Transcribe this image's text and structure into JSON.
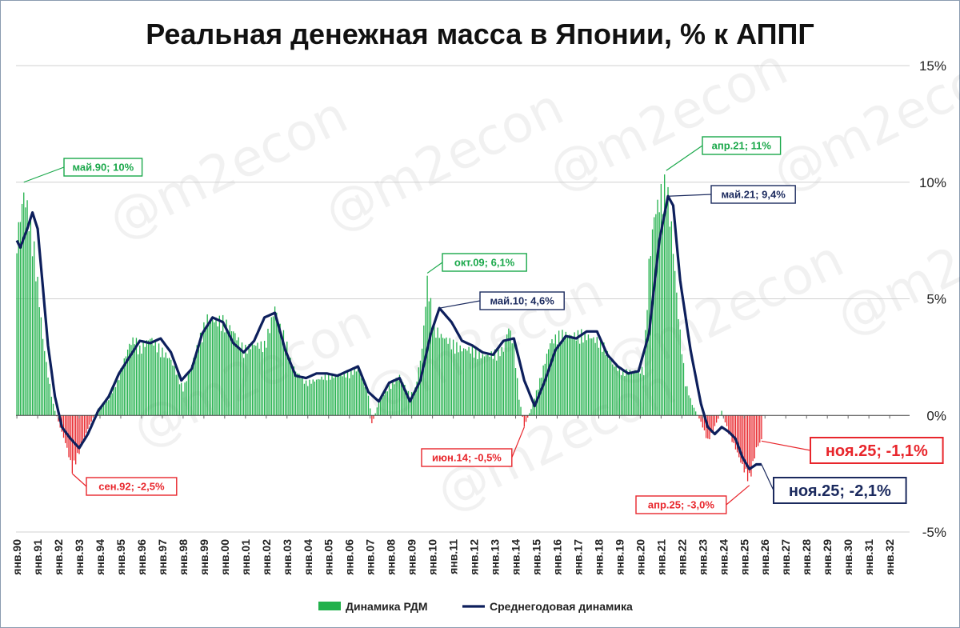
{
  "chart_data": {
    "type": "bar",
    "title": "Реальная денежная масса в Японии, % к АППГ",
    "ylim": [
      -5,
      15
    ],
    "yticks": [
      -5,
      0,
      5,
      10,
      15
    ],
    "ytick_labels": [
      "-5%",
      "0%",
      "5%",
      "10%",
      "15%"
    ],
    "grid": true,
    "legend_position": "bottom",
    "x_start": "1990-01",
    "x_end": "2032-12",
    "xtick_labels": [
      "янв.90",
      "янв.91",
      "янв.92",
      "янв.93",
      "янв.94",
      "янв.95",
      "янв.96",
      "янв.97",
      "янв.98",
      "янв.99",
      "янв.00",
      "янв.01",
      "янв.02",
      "янв.03",
      "янв.04",
      "янв.05",
      "янв.06",
      "янв.07",
      "янв.08",
      "янв.09",
      "янв.10",
      "янв.11",
      "янв.12",
      "янв.13",
      "янв.14",
      "янв.15",
      "янв.16",
      "янв.17",
      "янв.18",
      "янв.19",
      "янв.20",
      "янв.21",
      "янв.22",
      "янв.23",
      "янв.24",
      "янв.25",
      "янв.26",
      "янв.27",
      "янв.28",
      "янв.29",
      "янв.30",
      "янв.31",
      "янв.32"
    ],
    "watermark": "@m2econ",
    "colors": {
      "positive_bar": "#22b14c",
      "negative_bar": "#e8262c",
      "line": "#0d1f5c",
      "green_label": "#1aa84a",
      "red_label": "#e8262c",
      "blue_label": "#1b2a5e"
    },
    "series": [
      {
        "name": "Динамика РДМ",
        "kind": "bar",
        "points": [
          [
            "1990-01",
            7.9
          ],
          [
            "1990-03",
            9.0
          ],
          [
            "1990-05",
            10.0
          ],
          [
            "1990-07",
            9.4
          ],
          [
            "1990-10",
            8.2
          ],
          [
            "1991-01",
            6.0
          ],
          [
            "1991-04",
            3.5
          ],
          [
            "1991-07",
            1.8
          ],
          [
            "1991-10",
            0.5
          ],
          [
            "1992-01",
            -0.3
          ],
          [
            "1992-04",
            -1.0
          ],
          [
            "1992-06",
            -1.5
          ],
          [
            "1992-09",
            -2.5
          ],
          [
            "1992-12",
            -1.9
          ],
          [
            "1993-03",
            -1.2
          ],
          [
            "1993-06",
            -0.6
          ],
          [
            "1993-09",
            -0.1
          ],
          [
            "1993-12",
            0.3
          ],
          [
            "1994-06",
            0.7
          ],
          [
            "1994-12",
            1.8
          ],
          [
            "1995-06",
            3.2
          ],
          [
            "1995-09",
            3.5
          ],
          [
            "1995-12",
            3.0
          ],
          [
            "1996-06",
            3.5
          ],
          [
            "1996-12",
            3.0
          ],
          [
            "1997-06",
            2.5
          ],
          [
            "1997-10",
            1.8
          ],
          [
            "1998-01",
            1.2
          ],
          [
            "1998-06",
            2.3
          ],
          [
            "1998-12",
            3.8
          ],
          [
            "1999-03",
            4.4
          ],
          [
            "1999-07",
            4.3
          ],
          [
            "1999-12",
            4.3
          ],
          [
            "2000-06",
            3.8
          ],
          [
            "2000-12",
            3.0
          ],
          [
            "2001-06",
            3.2
          ],
          [
            "2001-12",
            3.2
          ],
          [
            "2002-03",
            4.0
          ],
          [
            "2002-06",
            4.9
          ],
          [
            "2002-09",
            4.0
          ],
          [
            "2002-12",
            3.5
          ],
          [
            "2003-03",
            2.5
          ],
          [
            "2003-06",
            2.0
          ],
          [
            "2003-12",
            1.5
          ],
          [
            "2004-06",
            1.6
          ],
          [
            "2004-12",
            1.8
          ],
          [
            "2005-06",
            1.8
          ],
          [
            "2005-12",
            1.9
          ],
          [
            "2006-06",
            2.1
          ],
          [
            "2006-12",
            1.0
          ],
          [
            "2007-02",
            -0.4
          ],
          [
            "2007-06",
            0.6
          ],
          [
            "2007-12",
            1.3
          ],
          [
            "2008-06",
            1.8
          ],
          [
            "2008-12",
            0.9
          ],
          [
            "2009-03",
            1.2
          ],
          [
            "2009-07",
            3.0
          ],
          [
            "2009-10",
            6.1
          ],
          [
            "2010-02",
            4.0
          ],
          [
            "2010-06",
            3.6
          ],
          [
            "2010-12",
            3.3
          ],
          [
            "2011-06",
            3.0
          ],
          [
            "2011-12",
            3.0
          ],
          [
            "2012-06",
            2.7
          ],
          [
            "2012-12",
            2.8
          ],
          [
            "2013-06",
            3.0
          ],
          [
            "2013-09",
            4.0
          ],
          [
            "2013-12",
            3.2
          ],
          [
            "2014-03",
            0.8
          ],
          [
            "2014-06",
            -0.5
          ],
          [
            "2014-10",
            0.3
          ],
          [
            "2015-03",
            1.6
          ],
          [
            "2015-09",
            3.3
          ],
          [
            "2016-03",
            3.7
          ],
          [
            "2016-09",
            3.6
          ],
          [
            "2017-03",
            3.7
          ],
          [
            "2017-09",
            3.5
          ],
          [
            "2018-03",
            3.3
          ],
          [
            "2018-09",
            2.3
          ],
          [
            "2019-03",
            2.0
          ],
          [
            "2019-09",
            2.0
          ],
          [
            "2020-03",
            2.1
          ],
          [
            "2020-06",
            6.8
          ],
          [
            "2020-09",
            9.0
          ],
          [
            "2021-01",
            10.0
          ],
          [
            "2021-04",
            10.5
          ],
          [
            "2021-07",
            8.5
          ],
          [
            "2021-11",
            4.5
          ],
          [
            "2022-03",
            1.5
          ],
          [
            "2022-07",
            0.5
          ],
          [
            "2022-12",
            -0.3
          ],
          [
            "2023-04",
            -1.2
          ],
          [
            "2023-08",
            -0.5
          ],
          [
            "2023-12",
            0.2
          ],
          [
            "2024-04",
            -0.8
          ],
          [
            "2024-08",
            -1.5
          ],
          [
            "2024-12",
            -2.3
          ],
          [
            "2025-04",
            -3.0
          ],
          [
            "2025-08",
            -1.5
          ],
          [
            "2025-11",
            -1.1
          ]
        ]
      },
      {
        "name": "Среднегодовая динамика",
        "kind": "line",
        "points": [
          [
            "1990-01",
            7.5
          ],
          [
            "1990-03",
            7.2
          ],
          [
            "1990-07",
            8.0
          ],
          [
            "1990-10",
            8.7
          ],
          [
            "1991-01",
            8.0
          ],
          [
            "1991-04",
            5.5
          ],
          [
            "1991-07",
            3.0
          ],
          [
            "1991-11",
            0.8
          ],
          [
            "1992-03",
            -0.5
          ],
          [
            "1992-08",
            -1.0
          ],
          [
            "1993-01",
            -1.4
          ],
          [
            "1993-06",
            -0.8
          ],
          [
            "1993-12",
            0.2
          ],
          [
            "1994-06",
            0.8
          ],
          [
            "1994-12",
            1.8
          ],
          [
            "1995-06",
            2.5
          ],
          [
            "1995-12",
            3.2
          ],
          [
            "1996-06",
            3.1
          ],
          [
            "1996-12",
            3.3
          ],
          [
            "1997-06",
            2.7
          ],
          [
            "1997-12",
            1.5
          ],
          [
            "1998-06",
            2.0
          ],
          [
            "1998-12",
            3.5
          ],
          [
            "1999-06",
            4.2
          ],
          [
            "1999-12",
            4.0
          ],
          [
            "2000-06",
            3.1
          ],
          [
            "2000-12",
            2.7
          ],
          [
            "2001-06",
            3.2
          ],
          [
            "2001-12",
            4.2
          ],
          [
            "2002-06",
            4.4
          ],
          [
            "2002-12",
            2.8
          ],
          [
            "2003-06",
            1.7
          ],
          [
            "2003-12",
            1.6
          ],
          [
            "2004-06",
            1.8
          ],
          [
            "2004-12",
            1.8
          ],
          [
            "2005-06",
            1.7
          ],
          [
            "2005-12",
            1.9
          ],
          [
            "2006-06",
            2.1
          ],
          [
            "2006-12",
            1.0
          ],
          [
            "2007-06",
            0.6
          ],
          [
            "2007-12",
            1.4
          ],
          [
            "2008-06",
            1.6
          ],
          [
            "2008-12",
            0.6
          ],
          [
            "2009-06",
            1.5
          ],
          [
            "2009-12",
            3.5
          ],
          [
            "2010-05",
            4.6
          ],
          [
            "2010-12",
            4.0
          ],
          [
            "2011-06",
            3.2
          ],
          [
            "2011-12",
            3.0
          ],
          [
            "2012-06",
            2.7
          ],
          [
            "2012-12",
            2.6
          ],
          [
            "2013-06",
            3.2
          ],
          [
            "2013-12",
            3.3
          ],
          [
            "2014-06",
            1.5
          ],
          [
            "2014-12",
            0.4
          ],
          [
            "2015-06",
            1.5
          ],
          [
            "2015-12",
            2.8
          ],
          [
            "2016-06",
            3.4
          ],
          [
            "2016-12",
            3.3
          ],
          [
            "2017-06",
            3.6
          ],
          [
            "2017-12",
            3.6
          ],
          [
            "2018-06",
            2.6
          ],
          [
            "2018-12",
            2.1
          ],
          [
            "2019-06",
            1.8
          ],
          [
            "2019-12",
            1.9
          ],
          [
            "2020-06",
            3.5
          ],
          [
            "2020-12",
            7.5
          ],
          [
            "2021-05",
            9.4
          ],
          [
            "2021-08",
            9.0
          ],
          [
            "2021-12",
            5.8
          ],
          [
            "2022-06",
            2.8
          ],
          [
            "2022-12",
            0.5
          ],
          [
            "2023-04",
            -0.5
          ],
          [
            "2023-08",
            -0.8
          ],
          [
            "2023-12",
            -0.5
          ],
          [
            "2024-04",
            -0.7
          ],
          [
            "2024-08",
            -1.0
          ],
          [
            "2024-12",
            -1.8
          ],
          [
            "2025-04",
            -2.3
          ],
          [
            "2025-08",
            -2.1
          ],
          [
            "2025-11",
            -2.1
          ]
        ]
      }
    ],
    "annotations": [
      {
        "label": "май.90; 10%",
        "date": "1990-05",
        "value": 10.0,
        "color": "green"
      },
      {
        "label": "сен.92; -2,5%",
        "date": "1992-09",
        "value": -2.5,
        "color": "red"
      },
      {
        "label": "окт.09; 6,1%",
        "date": "2009-10",
        "value": 6.1,
        "color": "green"
      },
      {
        "label": "май.10; 4,6%",
        "date": "2010-05",
        "value": 4.6,
        "color": "blue"
      },
      {
        "label": "июн.14; -0,5%",
        "date": "2014-06",
        "value": -0.5,
        "color": "red"
      },
      {
        "label": "апр.21; 11%",
        "date": "2021-04",
        "value": 10.5,
        "color": "green"
      },
      {
        "label": "май.21; 9,4%",
        "date": "2021-05",
        "value": 9.4,
        "color": "blue"
      },
      {
        "label": "апр.25; -3,0%",
        "date": "2025-04",
        "value": -3.0,
        "color": "red"
      },
      {
        "label": "ноя.25; -1,1%",
        "date": "2025-11",
        "value": -1.1,
        "color": "red",
        "large": true
      },
      {
        "label": "ноя.25; -2,1%",
        "date": "2025-11",
        "value": -2.1,
        "color": "blue",
        "large": true
      }
    ]
  }
}
